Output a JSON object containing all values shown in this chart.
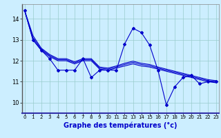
{
  "bg_color": "#cceeff",
  "line_color": "#0000cc",
  "grid_color": "#99cccc",
  "xlabel": "Graphe des températures (°c)",
  "xlabel_fontsize": 7,
  "ytick_fontsize": 6,
  "xtick_fontsize": 5,
  "yticks": [
    10,
    11,
    12,
    13,
    14
  ],
  "xticks": [
    0,
    1,
    2,
    3,
    4,
    5,
    6,
    7,
    8,
    9,
    10,
    11,
    12,
    13,
    14,
    15,
    16,
    17,
    18,
    19,
    20,
    21,
    22,
    23
  ],
  "xlim": [
    -0.3,
    23.3
  ],
  "ylim": [
    9.5,
    14.7
  ],
  "series_main": [
    14.4,
    13.0,
    12.5,
    12.1,
    11.55,
    11.55,
    11.55,
    12.1,
    11.2,
    11.55,
    11.55,
    11.55,
    12.8,
    13.55,
    13.35,
    12.75,
    11.55,
    9.9,
    10.75,
    11.2,
    11.3,
    10.9,
    11.0,
    11.0
  ],
  "series_smooth": [
    [
      14.4,
      13.0,
      12.5,
      12.2,
      12.0,
      12.0,
      11.85,
      12.0,
      12.0,
      11.6,
      11.55,
      11.65,
      11.75,
      11.85,
      11.75,
      11.7,
      11.6,
      11.5,
      11.4,
      11.3,
      11.2,
      11.1,
      11.0,
      10.95
    ],
    [
      14.4,
      13.1,
      12.55,
      12.25,
      12.05,
      12.05,
      11.9,
      12.05,
      12.05,
      11.65,
      11.6,
      11.7,
      11.82,
      11.92,
      11.82,
      11.76,
      11.65,
      11.55,
      11.45,
      11.35,
      11.25,
      11.15,
      11.05,
      11.0
    ],
    [
      14.4,
      13.2,
      12.6,
      12.3,
      12.1,
      12.1,
      11.95,
      12.1,
      12.1,
      11.7,
      11.65,
      11.75,
      11.88,
      11.98,
      11.88,
      11.82,
      11.7,
      11.6,
      11.5,
      11.4,
      11.3,
      11.2,
      11.1,
      11.05
    ]
  ]
}
